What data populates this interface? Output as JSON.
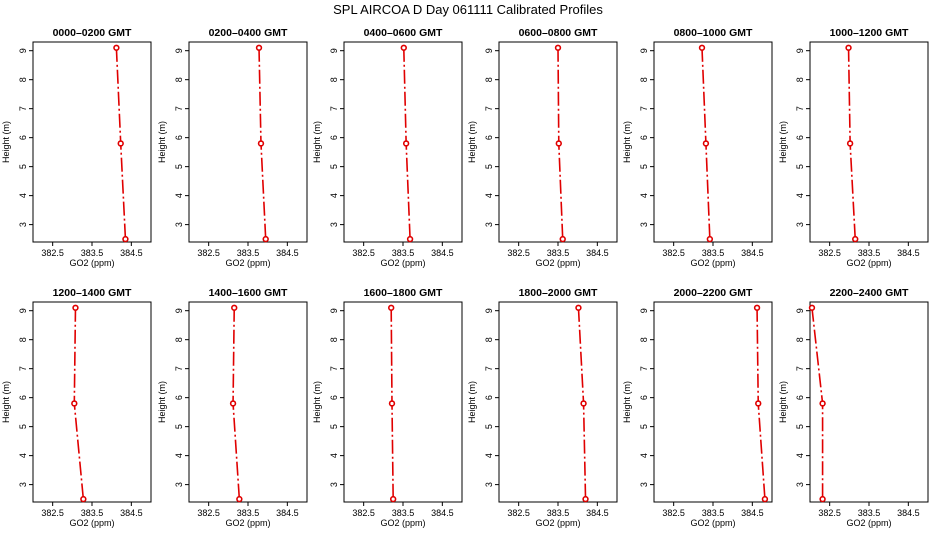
{
  "title": "SPL AIRCOA D  Day 061111  Calibrated Profiles",
  "chart_data": {
    "type": "line",
    "xlabel": "GO2 (ppm)",
    "ylabel": "Height (m)",
    "xlim": [
      382.0,
      385.0
    ],
    "ylim": [
      2.4,
      9.3
    ],
    "xticks": [
      382.5,
      383.5,
      384.5
    ],
    "xtick_labels": [
      "382.5",
      "383.5",
      "384.5"
    ],
    "yticks": [
      3,
      4,
      5,
      6,
      7,
      8,
      9
    ],
    "ytick_labels": [
      "3",
      "4",
      "5",
      "6",
      "7",
      "8",
      "9"
    ],
    "grid": false,
    "panels": [
      {
        "title": "0000–0200 GMT",
        "points": [
          {
            "x": 384.12,
            "y": 9.1
          },
          {
            "x": 384.23,
            "y": 5.8
          },
          {
            "x": 384.35,
            "y": 2.5
          }
        ]
      },
      {
        "title": "0200–0400 GMT",
        "points": [
          {
            "x": 383.78,
            "y": 9.1
          },
          {
            "x": 383.83,
            "y": 5.8
          },
          {
            "x": 383.95,
            "y": 2.5
          }
        ]
      },
      {
        "title": "0400–0600 GMT",
        "points": [
          {
            "x": 383.52,
            "y": 9.1
          },
          {
            "x": 383.58,
            "y": 5.8
          },
          {
            "x": 383.68,
            "y": 2.5
          }
        ]
      },
      {
        "title": "0600–0800 GMT",
        "points": [
          {
            "x": 383.5,
            "y": 9.1
          },
          {
            "x": 383.52,
            "y": 5.8
          },
          {
            "x": 383.62,
            "y": 2.5
          }
        ]
      },
      {
        "title": "0800–1000 GMT",
        "points": [
          {
            "x": 383.22,
            "y": 9.1
          },
          {
            "x": 383.32,
            "y": 5.8
          },
          {
            "x": 383.42,
            "y": 2.5
          }
        ]
      },
      {
        "title": "1000–1200 GMT",
        "points": [
          {
            "x": 382.98,
            "y": 9.1
          },
          {
            "x": 383.02,
            "y": 5.8
          },
          {
            "x": 383.15,
            "y": 2.5
          }
        ]
      },
      {
        "title": "1200–1400 GMT",
        "points": [
          {
            "x": 383.08,
            "y": 9.1
          },
          {
            "x": 383.05,
            "y": 5.8
          },
          {
            "x": 383.28,
            "y": 2.5
          }
        ]
      },
      {
        "title": "1400–1600 GMT",
        "points": [
          {
            "x": 383.15,
            "y": 9.1
          },
          {
            "x": 383.12,
            "y": 5.8
          },
          {
            "x": 383.28,
            "y": 2.5
          }
        ]
      },
      {
        "title": "1600–1800 GMT",
        "points": [
          {
            "x": 383.2,
            "y": 9.1
          },
          {
            "x": 383.22,
            "y": 5.8
          },
          {
            "x": 383.25,
            "y": 2.5
          }
        ]
      },
      {
        "title": "1800–2000 GMT",
        "points": [
          {
            "x": 384.02,
            "y": 9.1
          },
          {
            "x": 384.15,
            "y": 5.8
          },
          {
            "x": 384.2,
            "y": 2.5
          }
        ]
      },
      {
        "title": "2000–2200 GMT",
        "points": [
          {
            "x": 384.62,
            "y": 9.1
          },
          {
            "x": 384.65,
            "y": 5.8
          },
          {
            "x": 384.82,
            "y": 2.5
          }
        ]
      },
      {
        "title": "2200–2400 GMT",
        "points": [
          {
            "x": 382.05,
            "y": 9.1
          },
          {
            "x": 382.32,
            "y": 5.8
          },
          {
            "x": 382.32,
            "y": 2.5
          }
        ]
      }
    ]
  }
}
